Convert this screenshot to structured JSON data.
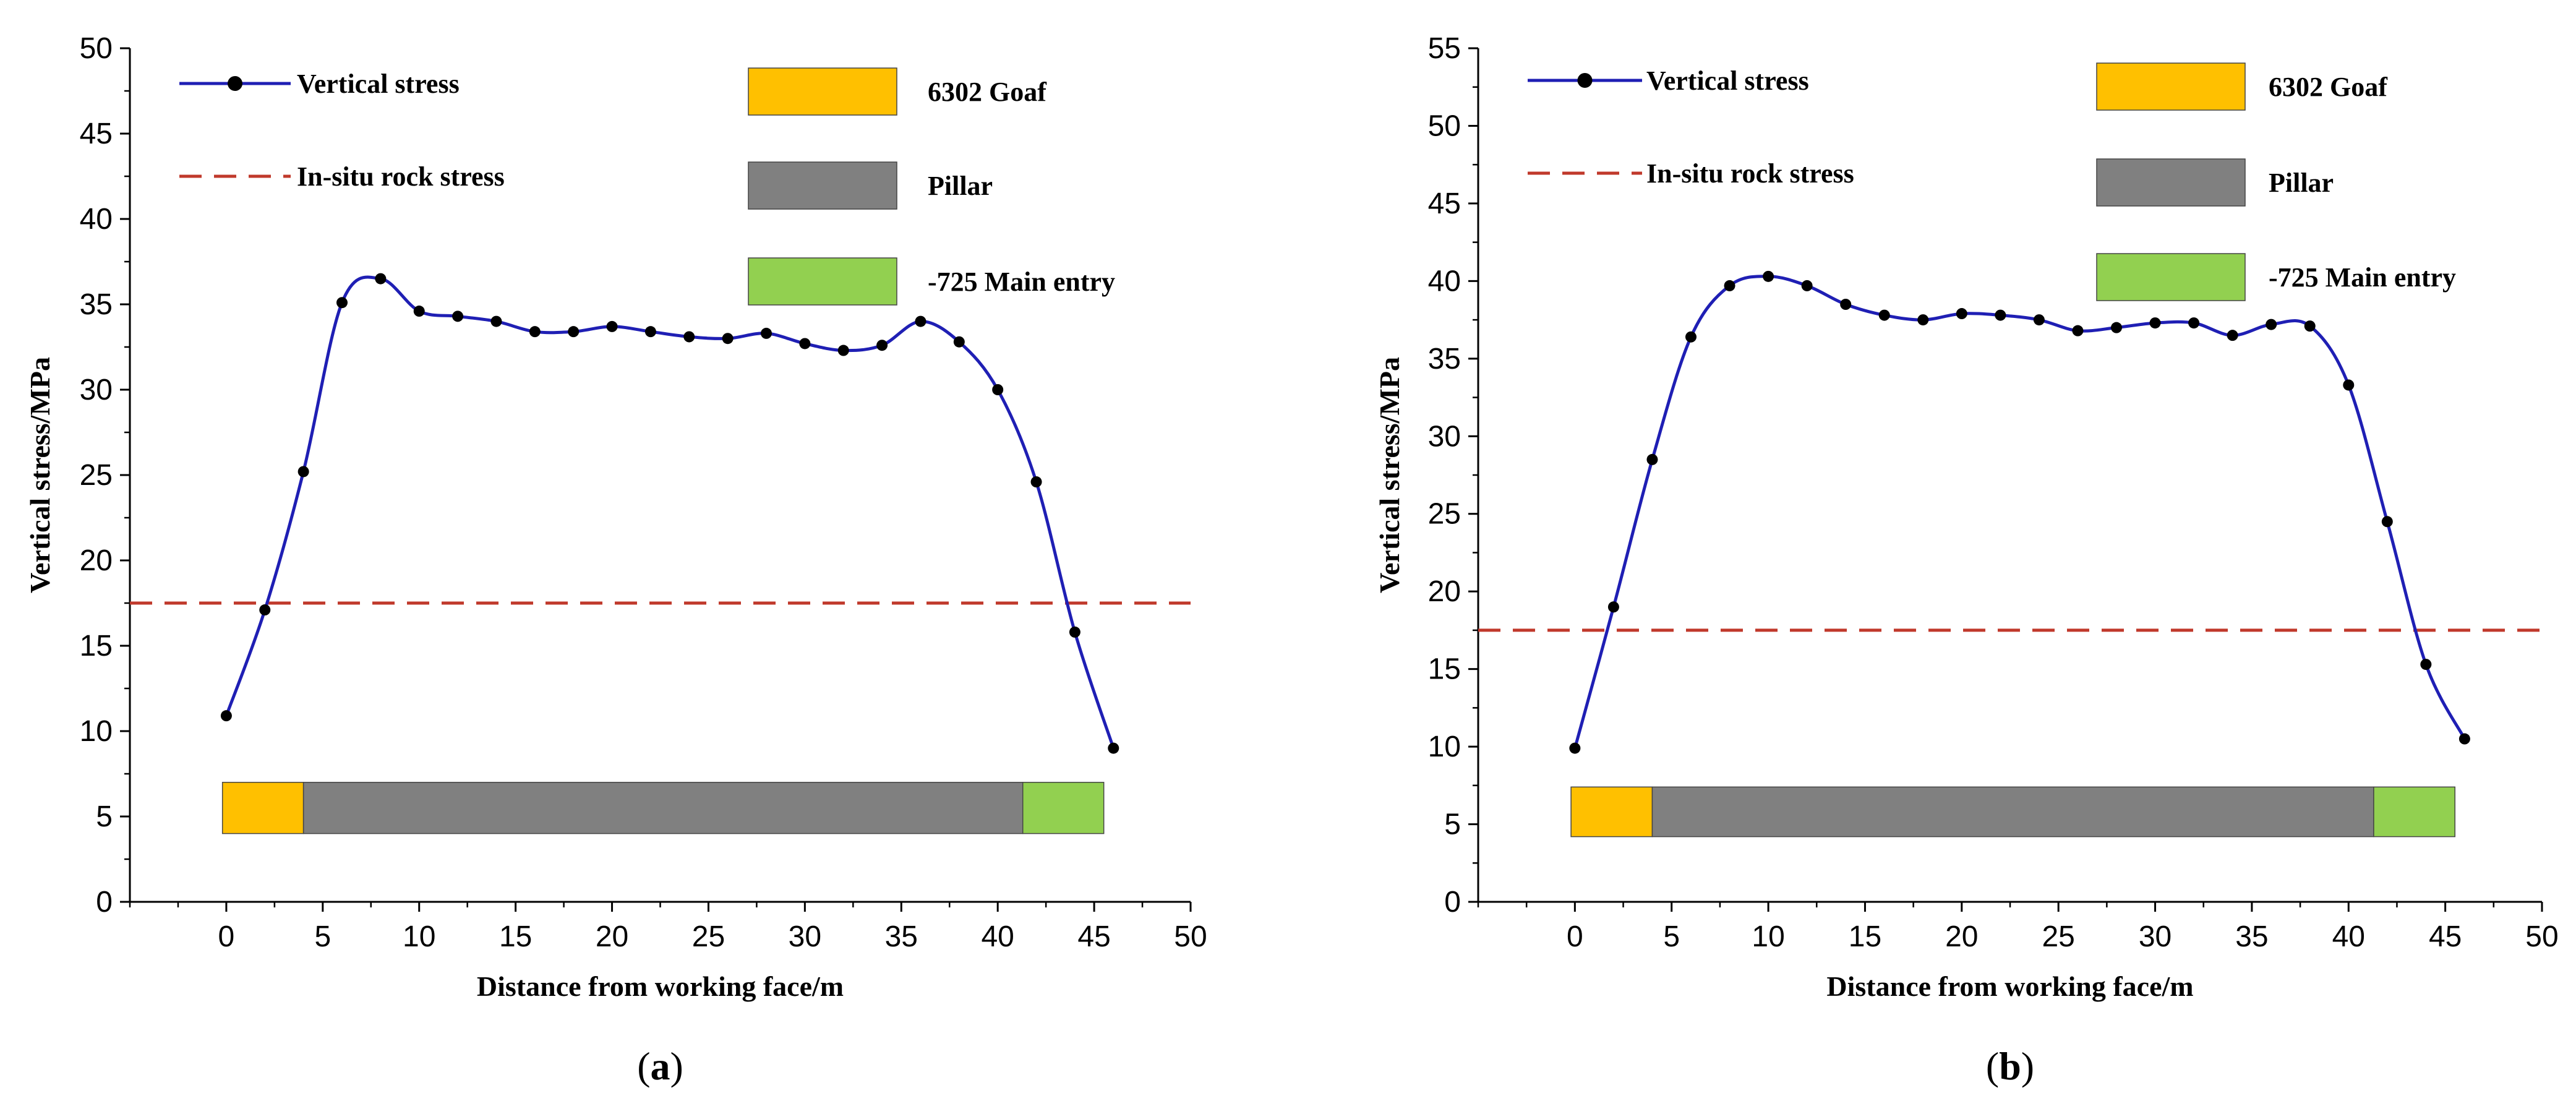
{
  "chart_data": [
    {
      "type": "line",
      "panel_label": "a",
      "xlabel": "Distance from working face/m",
      "ylabel": "Vertical stress/MPa",
      "xlim": [
        -5,
        50
      ],
      "ylim": [
        0,
        50
      ],
      "xticks": [
        0,
        5,
        10,
        15,
        20,
        25,
        30,
        35,
        40,
        45,
        50
      ],
      "yticks": [
        0,
        5,
        10,
        15,
        20,
        25,
        30,
        35,
        40,
        45,
        50
      ],
      "series": [
        {
          "name": "Vertical stress",
          "color": "#1f1fb4",
          "x": [
            0,
            2,
            4,
            6,
            8,
            10,
            12,
            14,
            16,
            18,
            20,
            22,
            24,
            26,
            28,
            30,
            32,
            34,
            36,
            38,
            40,
            42,
            44,
            46
          ],
          "y": [
            10.9,
            17.1,
            25.2,
            35.1,
            36.5,
            34.6,
            34.3,
            34.0,
            33.4,
            33.4,
            33.7,
            33.4,
            33.1,
            33.0,
            33.3,
            32.7,
            32.3,
            32.6,
            34.0,
            32.8,
            30.0,
            24.6,
            15.8,
            9.0
          ]
        }
      ],
      "reference_line": {
        "name": "In-situ rock stress",
        "y": 17.5,
        "color": "#c0392b"
      },
      "zones": [
        {
          "name": "6302 Goaf",
          "x0": -0.2,
          "x1": 4,
          "color": "#ffc000"
        },
        {
          "name": "Pillar",
          "x0": 4,
          "x1": 41.3,
          "color": "#808080"
        },
        {
          "name": "-725 Main entry",
          "x0": 41.3,
          "x1": 45.5,
          "color": "#92d050"
        }
      ],
      "zone_band": [
        4,
        7
      ]
    },
    {
      "type": "line",
      "panel_label": "b",
      "xlabel": "Distance from working face/m",
      "ylabel": "Vertical stress/MPa",
      "xlim": [
        -5,
        50
      ],
      "ylim": [
        0,
        55
      ],
      "xticks": [
        0,
        5,
        10,
        15,
        20,
        25,
        30,
        35,
        40,
        45,
        50
      ],
      "yticks": [
        0,
        5,
        10,
        15,
        20,
        25,
        30,
        35,
        40,
        45,
        50,
        55
      ],
      "series": [
        {
          "name": "Vertical stress",
          "color": "#1f1fb4",
          "x": [
            0,
            2,
            4,
            6,
            8,
            10,
            12,
            14,
            16,
            18,
            20,
            22,
            24,
            26,
            28,
            30,
            32,
            34,
            36,
            38,
            40,
            42,
            44,
            46
          ],
          "y": [
            9.9,
            19.0,
            28.5,
            36.4,
            39.7,
            40.3,
            39.7,
            38.5,
            37.8,
            37.5,
            37.9,
            37.8,
            37.5,
            36.8,
            37.0,
            37.3,
            37.3,
            36.5,
            37.2,
            37.1,
            33.3,
            24.5,
            15.3,
            10.5
          ]
        }
      ],
      "reference_line": {
        "name": "In-situ rock stress",
        "y": 17.5,
        "color": "#c0392b"
      },
      "zones": [
        {
          "name": "6302 Goaf",
          "x0": -0.2,
          "x1": 4,
          "color": "#ffc000"
        },
        {
          "name": "Pillar",
          "x0": 4,
          "x1": 41.3,
          "color": "#808080"
        },
        {
          "name": "-725 Main entry",
          "x0": 41.3,
          "x1": 45.5,
          "color": "#92d050"
        }
      ],
      "zone_band": [
        4.2,
        7.4
      ]
    }
  ]
}
